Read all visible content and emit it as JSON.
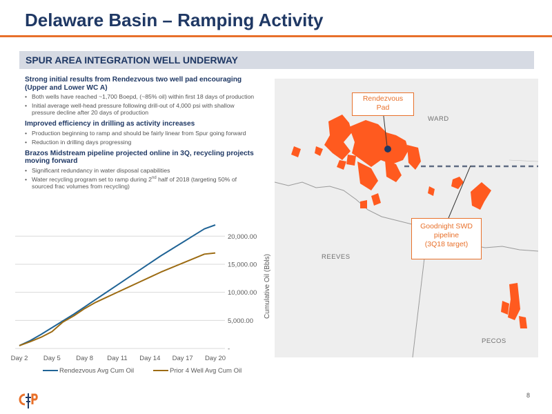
{
  "slide": {
    "title": "Delaware Basin – Ramping Activity",
    "banner": "SPUR AREA INTEGRATION WELL UNDERWAY",
    "page_number": "8"
  },
  "bullets": {
    "s1": {
      "head": "Strong initial results from Rendezvous two well pad encouraging (Upper and Lower WC A)",
      "b1": "Both wells have reached ~1,700 Boepd, (~85% oil) within first 18 days of production",
      "b2": "Initial average well-head pressure following drill-out of 4,000 psi with shallow pressure decline after 20 days of production"
    },
    "s2": {
      "head": "Improved efficiency in drilling as activity increases",
      "b1": "Production beginning to ramp and should be fairly linear from Spur going forward",
      "b2": "Reduction in drilling days progressing"
    },
    "s3": {
      "head": "Brazos Midstream pipeline projected online in 3Q, recycling projects moving forward",
      "b1": "Significant redundancy in water disposal capabilities",
      "b2_pre": "Water recycling program set to ramp during 2",
      "b2_sup": "nd",
      "b2_post": " half of 2018 (targeting 50% of sourced frac volumes from recycling)"
    }
  },
  "map": {
    "callout_rendezvous": {
      "line1": "Rendezvous",
      "line2": "Pad"
    },
    "callout_goodnight": {
      "line1": "Goodnight SWD",
      "line2": "pipeline",
      "line3": "(3Q18 target)"
    },
    "county_ward": "WARD",
    "county_reeves": "REEVES",
    "county_pecos": "PECOS",
    "colors": {
      "acreage": "#ff5a1f",
      "background": "#eeeeee",
      "pipeline": "#5e6b82",
      "callout": "#e8702a"
    }
  },
  "chart_data": {
    "type": "line",
    "x": [
      2,
      5,
      8,
      11,
      14,
      17,
      20
    ],
    "categories": [
      "Day 2",
      "Day 5",
      "Day 8",
      "Day 11",
      "Day 14",
      "Day 17",
      "Day 20"
    ],
    "ylabel": "Cumulative Oil (Bbls)",
    "ylim": [
      0,
      22000
    ],
    "yticks": [
      0,
      5000,
      10000,
      15000,
      20000
    ],
    "ytick_labels": [
      "-",
      "5,000.00",
      "10,000.00",
      "15,000.00",
      "20,000.00"
    ],
    "y_axis_side": "right",
    "grid": true,
    "legend": "bottom",
    "series": [
      {
        "name": "Rendezvous Avg Cum Oil",
        "color": "#1f6395",
        "x": [
          2,
          3,
          4,
          5,
          6,
          7,
          8,
          9,
          10,
          11,
          12,
          13,
          14,
          15,
          16,
          17,
          18,
          19,
          20
        ],
        "values": [
          500,
          1400,
          2500,
          3700,
          4900,
          6100,
          7400,
          8700,
          10000,
          11300,
          12600,
          13900,
          15200,
          16500,
          17700,
          18900,
          20100,
          21300,
          22000
        ]
      },
      {
        "name": "Prior 4 Well Avg Cum Oil",
        "color": "#9c6b12",
        "x": [
          2,
          3,
          4,
          5,
          6,
          7,
          8,
          9,
          10,
          11,
          12,
          13,
          14,
          15,
          16,
          17,
          18,
          19,
          20
        ],
        "values": [
          500,
          1200,
          2000,
          3000,
          4700,
          5800,
          7100,
          8200,
          9100,
          10000,
          10900,
          11800,
          12700,
          13600,
          14400,
          15200,
          16000,
          16800,
          17000
        ]
      }
    ]
  }
}
